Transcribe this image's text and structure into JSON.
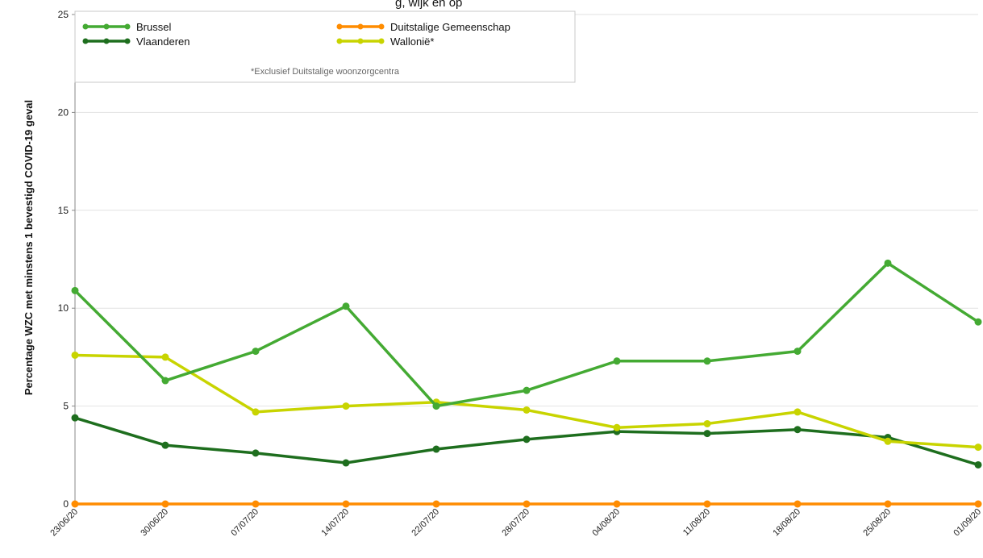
{
  "chart_data": {
    "type": "line",
    "title_fragment": "g, wijk en op",
    "xlabel": "",
    "ylabel": "Percentage WZC met minstens 1 bevestigd COVID-19 geval",
    "ylim": [
      0,
      25
    ],
    "yticks": [
      0,
      5,
      10,
      15,
      20,
      25
    ],
    "grid": "horizontal",
    "legend_position": "top-left",
    "legend_note": "*Exclusief Duitstalige woonzorgcentra",
    "categories": [
      "23/06/20",
      "30/06/20",
      "07/07/20",
      "14/07/20",
      "22/07/20",
      "28/07/20",
      "04/08/20",
      "11/08/20",
      "18/08/20",
      "25/08/20",
      "01/09/20"
    ],
    "series": [
      {
        "name": "Brussel",
        "color": "#44aa33",
        "values": [
          10.9,
          6.3,
          7.8,
          10.1,
          5.0,
          5.8,
          7.3,
          7.3,
          7.8,
          12.3,
          9.3
        ]
      },
      {
        "name": "Vlaanderen",
        "color": "#1e6e1e",
        "values": [
          4.4,
          3.0,
          2.6,
          2.1,
          2.8,
          3.3,
          3.7,
          3.6,
          3.8,
          3.4,
          2.0
        ]
      },
      {
        "name": "Duitstalige Gemeenschap",
        "color": "#ff8c00",
        "values": [
          0,
          0,
          0,
          0,
          0,
          0,
          0,
          0,
          0,
          0,
          0
        ]
      },
      {
        "name": "Wallonië*",
        "color": "#c8d400",
        "values": [
          7.6,
          7.5,
          4.7,
          5.0,
          5.2,
          4.8,
          3.9,
          4.1,
          4.7,
          3.2,
          2.9
        ]
      }
    ]
  }
}
